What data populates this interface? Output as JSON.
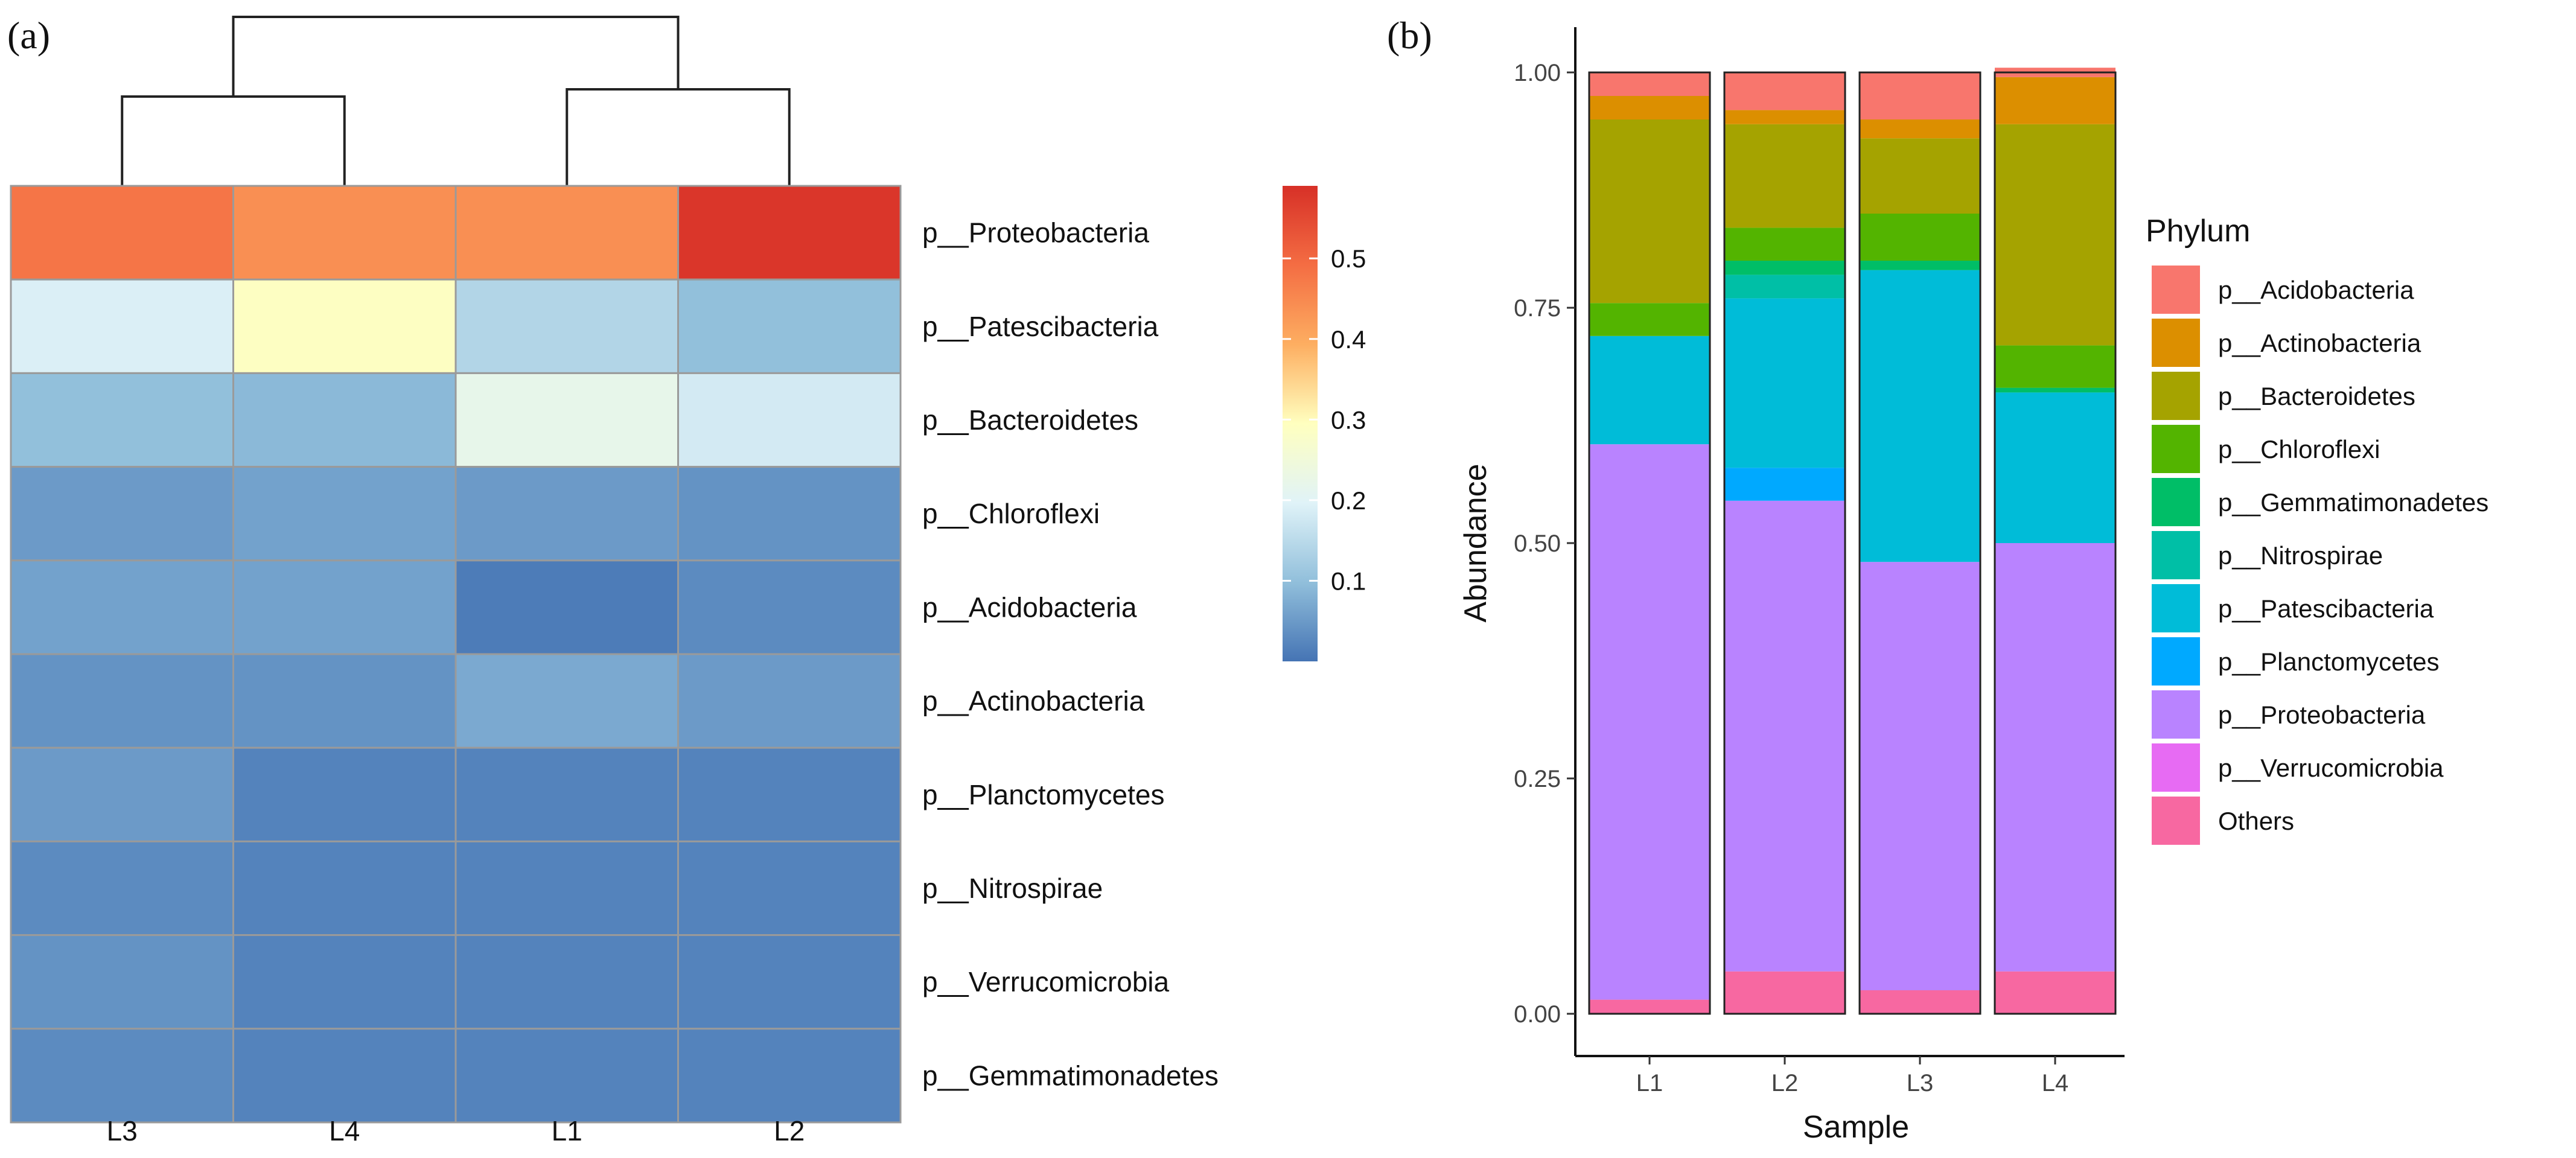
{
  "panels": {
    "a": "(a)",
    "b": "(b)"
  },
  "heatmap": {
    "type": "heatmap",
    "columns": [
      "L3",
      "L4",
      "L1",
      "L2"
    ],
    "rows": [
      "p__Proteobacteria",
      "p__Patescibacteria",
      "p__Bacteroidetes",
      "p__Chloroflexi",
      "p__Acidobacteria",
      "p__Actinobacteria",
      "p__Planctomycetes",
      "p__Nitrospirae",
      "p__Verrucomicrobia",
      "p__Gemmatimonadetes"
    ],
    "values": [
      [
        0.48,
        0.44,
        0.44,
        0.58
      ],
      [
        0.19,
        0.29,
        0.14,
        0.1
      ],
      [
        0.1,
        0.09,
        0.22,
        0.18
      ],
      [
        0.05,
        0.06,
        0.05,
        0.04
      ],
      [
        0.06,
        0.06,
        0.01,
        0.03
      ],
      [
        0.04,
        0.04,
        0.07,
        0.05
      ],
      [
        0.05,
        0.02,
        0.02,
        0.02
      ],
      [
        0.03,
        0.02,
        0.02,
        0.02
      ],
      [
        0.04,
        0.02,
        0.02,
        0.02
      ],
      [
        0.03,
        0.02,
        0.02,
        0.02
      ]
    ],
    "colorbar": {
      "ticks": [
        "0.1",
        "0.2",
        "0.3",
        "0.4",
        "0.5"
      ],
      "range": [
        0.0,
        0.59
      ],
      "colors": [
        "#4574b4",
        "#91bfdb",
        "#e0f3f8",
        "#ffffbf",
        "#fdae61",
        "#f46d43",
        "#d73027"
      ]
    },
    "dendrogram": "((L3,L4),(L1,L2))"
  },
  "chart_data": [
    {
      "type": "bar",
      "stacked": true,
      "title": "",
      "xlabel": "Sample",
      "ylabel": "Abundance",
      "categories": [
        "L1",
        "L2",
        "L3",
        "L4"
      ],
      "ylim": [
        0,
        1
      ],
      "yticks": [
        "0.00",
        "0.25",
        "0.50",
        "0.75",
        "1.00"
      ],
      "series": [
        {
          "name": "Others",
          "color": "#f768a1",
          "values": [
            0.015,
            0.045,
            0.025,
            0.045
          ]
        },
        {
          "name": "p__Verrucomicrobia",
          "color": "#e76bf3",
          "values": [
            0.0,
            0.0,
            0.0,
            0.0
          ]
        },
        {
          "name": "p__Proteobacteria",
          "color": "#b983ff",
          "values": [
            0.59,
            0.5,
            0.455,
            0.455
          ]
        },
        {
          "name": "p__Planctomycetes",
          "color": "#00a9ff",
          "values": [
            0.0,
            0.035,
            0.0,
            0.0
          ]
        },
        {
          "name": "p__Patescibacteria",
          "color": "#00bcd8",
          "values": [
            0.115,
            0.18,
            0.31,
            0.16
          ]
        },
        {
          "name": "p__Nitrospirae",
          "color": "#00bfa6",
          "values": [
            0.0,
            0.025,
            0.0,
            0.0
          ]
        },
        {
          "name": "p__Gemmatimonadetes",
          "color": "#00be67",
          "values": [
            0.0,
            0.015,
            0.01,
            0.005
          ]
        },
        {
          "name": "p__Chloroflexi",
          "color": "#53b400",
          "values": [
            0.035,
            0.035,
            0.05,
            0.045
          ]
        },
        {
          "name": "p__Bacteroidetes",
          "color": "#a5a300",
          "values": [
            0.195,
            0.11,
            0.08,
            0.235
          ]
        },
        {
          "name": "p__Actinobacteria",
          "color": "#dc8f00",
          "values": [
            0.025,
            0.015,
            0.02,
            0.05
          ]
        },
        {
          "name": "p__Acidobacteria",
          "color": "#f8766d",
          "values": [
            0.025,
            0.04,
            0.05,
            0.01
          ]
        }
      ],
      "legend": {
        "title": "Phylum",
        "position": "right",
        "items": [
          {
            "label": "p__Acidobacteria",
            "color": "#f8766d"
          },
          {
            "label": "p__Actinobacteria",
            "color": "#dc8f00"
          },
          {
            "label": "p__Bacteroidetes",
            "color": "#a5a300"
          },
          {
            "label": "p__Chloroflexi",
            "color": "#53b400"
          },
          {
            "label": "p__Gemmatimonadetes",
            "color": "#00be67"
          },
          {
            "label": "p__Nitrospirae",
            "color": "#00bfa6"
          },
          {
            "label": "p__Patescibacteria",
            "color": "#00bcd8"
          },
          {
            "label": "p__Planctomycetes",
            "color": "#00a9ff"
          },
          {
            "label": "p__Proteobacteria",
            "color": "#b983ff"
          },
          {
            "label": "p__Verrucomicrobia",
            "color": "#e76bf3"
          },
          {
            "label": "Others",
            "color": "#f768a1"
          }
        ]
      }
    }
  ]
}
